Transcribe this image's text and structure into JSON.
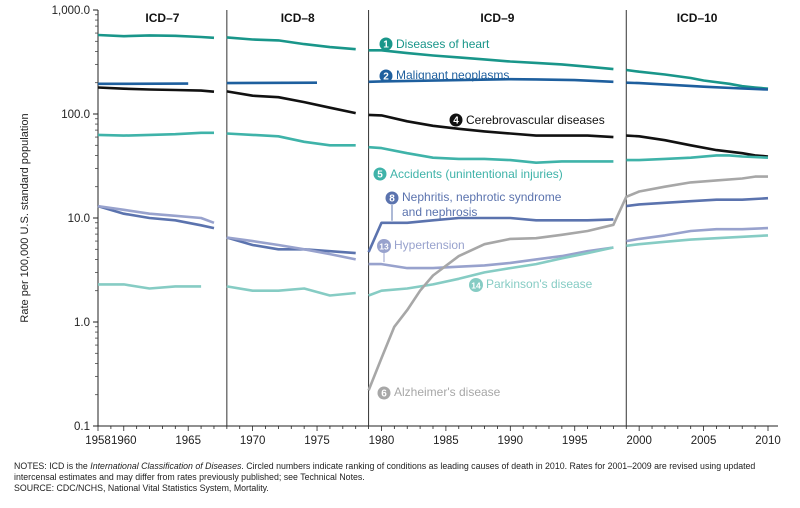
{
  "chart_data": {
    "type": "line",
    "title": "",
    "ylabel": "Rate per 100,000 U.S. standard population",
    "xlabel": "",
    "yscale": "log",
    "ylim": [
      0.1,
      1000
    ],
    "xlim": [
      1958,
      2010
    ],
    "x_ticks": [
      "1958",
      "1960",
      "1965",
      "1970",
      "1975",
      "1980",
      "1985",
      "1990",
      "1995",
      "2000",
      "2005",
      "2010"
    ],
    "y_ticks": [
      "1,000.0",
      "100.0",
      "10.0",
      "1.0",
      "0.1"
    ],
    "y_tick_values": [
      1000,
      100,
      10,
      1,
      0.1
    ],
    "eras": [
      {
        "label": "ICD–7",
        "start": 1958,
        "end": 1968
      },
      {
        "label": "ICD–8",
        "start": 1968,
        "end": 1979
      },
      {
        "label": "ICD–9",
        "start": 1979,
        "end": 1999
      },
      {
        "label": "ICD–10",
        "start": 1999,
        "end": 2010
      }
    ],
    "series": [
      {
        "id": "heart",
        "rank": "1",
        "name": "Diseases of heart",
        "color": "#19968a",
        "x": [
          1958,
          1960,
          1962,
          1964,
          1966,
          1967,
          1968,
          1970,
          1972,
          1974,
          1976,
          1978,
          1979,
          1980,
          1982,
          1984,
          1986,
          1988,
          1990,
          1992,
          1994,
          1996,
          1998,
          1999,
          2000,
          2002,
          2004,
          2005,
          2007,
          2008,
          2009,
          2010
        ],
        "y": [
          575,
          560,
          570,
          565,
          550,
          540,
          545,
          520,
          510,
          470,
          440,
          420,
          410,
          410,
          385,
          365,
          350,
          335,
          320,
          310,
          300,
          285,
          270,
          265,
          255,
          240,
          222,
          210,
          195,
          185,
          180,
          175
        ]
      },
      {
        "id": "cancer",
        "rank": "2",
        "name": "Malignant neoplasms",
        "color": "#1e5f9e",
        "x": [
          1958,
          1960,
          1965,
          1968,
          1970,
          1975,
          1979,
          1980,
          1985,
          1990,
          1992,
          1995,
          1998,
          1999,
          2000,
          2005,
          2008,
          2010
        ],
        "y": [
          195,
          195,
          196,
          198,
          199,
          200,
          204,
          206,
          211,
          216,
          215,
          212,
          204,
          200,
          198,
          183,
          176,
          172
        ]
      },
      {
        "id": "stroke",
        "rank": "4",
        "name": "Cerebrovascular diseases",
        "color": "#111111",
        "x": [
          1958,
          1960,
          1962,
          1964,
          1966,
          1967,
          1968,
          1970,
          1972,
          1974,
          1976,
          1978,
          1979,
          1980,
          1982,
          1984,
          1986,
          1988,
          1990,
          1992,
          1994,
          1996,
          1998,
          1999,
          2000,
          2002,
          2004,
          2006,
          2008,
          2009,
          2010
        ],
        "y": [
          180,
          175,
          172,
          170,
          168,
          164,
          165,
          150,
          145,
          130,
          115,
          102,
          98,
          97,
          85,
          77,
          72,
          68,
          65,
          62,
          62,
          62,
          60,
          62,
          61,
          56,
          50,
          45,
          42,
          40,
          39
        ]
      },
      {
        "id": "accidents",
        "rank": "5",
        "name": "Accidents (unintentional injuries)",
        "color": "#3fb3a9",
        "x": [
          1958,
          1960,
          1962,
          1964,
          1966,
          1967,
          1968,
          1970,
          1972,
          1974,
          1976,
          1978,
          1979,
          1980,
          1982,
          1984,
          1986,
          1988,
          1990,
          1992,
          1994,
          1996,
          1998,
          1999,
          2000,
          2002,
          2004,
          2006,
          2007,
          2008,
          2010
        ],
        "y": [
          63,
          62,
          63,
          64,
          66,
          66,
          65,
          63,
          61,
          54,
          50,
          50,
          48,
          47,
          42,
          38,
          37,
          37,
          36,
          34,
          35,
          35,
          35,
          36,
          36,
          37,
          38,
          40,
          40,
          39,
          38
        ]
      },
      {
        "id": "nephritis",
        "rank": "8",
        "name": "Nephritis, nephrotic syndrome and nephrosis",
        "color": "#5b73ae",
        "x": [
          1958,
          1960,
          1962,
          1964,
          1966,
          1967,
          1968,
          1970,
          1972,
          1974,
          1976,
          1978,
          1979,
          1980,
          1982,
          1984,
          1986,
          1988,
          1990,
          1992,
          1994,
          1996,
          1998,
          1999,
          2000,
          2002,
          2004,
          2006,
          2008,
          2010
        ],
        "y": [
          13,
          11,
          10,
          9.5,
          8.5,
          8,
          6.5,
          5.5,
          5,
          5,
          4.8,
          4.6,
          4.7,
          9,
          9,
          9.5,
          10,
          10,
          10,
          9.5,
          9.5,
          9.5,
          9.7,
          13,
          13.5,
          14,
          14.5,
          15,
          15,
          15.5
        ]
      },
      {
        "id": "hypertension",
        "rank": "13",
        "name": "Hypertension",
        "color": "#98a2cd",
        "x": [
          1958,
          1960,
          1962,
          1964,
          1966,
          1967,
          1968,
          1970,
          1972,
          1974,
          1976,
          1978,
          1979,
          1980,
          1982,
          1984,
          1986,
          1988,
          1990,
          1992,
          1994,
          1996,
          1998,
          1999,
          2000,
          2002,
          2004,
          2006,
          2008,
          2010
        ],
        "y": [
          13,
          12,
          11,
          10.5,
          10,
          9,
          6.5,
          6,
          5.5,
          5,
          4.5,
          4,
          3.6,
          3.6,
          3.3,
          3.3,
          3.4,
          3.5,
          3.7,
          4,
          4.3,
          4.8,
          5.2,
          6,
          6.3,
          6.8,
          7.5,
          7.8,
          7.8,
          8
        ]
      },
      {
        "id": "parkinsons",
        "rank": "14",
        "name": "Parkinson's disease",
        "color": "#86ccc4",
        "x": [
          1958,
          1960,
          1962,
          1964,
          1966,
          1968,
          1970,
          1972,
          1974,
          1976,
          1978,
          1979,
          1980,
          1982,
          1984,
          1986,
          1988,
          1990,
          1992,
          1994,
          1996,
          1998,
          1999,
          2000,
          2002,
          2004,
          2006,
          2008,
          2010
        ],
        "y": [
          2.3,
          2.3,
          2.1,
          2.2,
          2.2,
          2.2,
          2,
          2,
          2.1,
          1.8,
          1.9,
          1.8,
          2,
          2.1,
          2.3,
          2.6,
          3,
          3.3,
          3.6,
          4.1,
          4.6,
          5.2,
          5.4,
          5.6,
          5.9,
          6.2,
          6.4,
          6.6,
          6.8
        ]
      },
      {
        "id": "alzheimers",
        "rank": "6",
        "name": "Alzheimer's disease",
        "color": "#a7a7a7",
        "x": [
          1979,
          1980,
          1981,
          1982,
          1983,
          1984,
          1986,
          1988,
          1990,
          1992,
          1994,
          1996,
          1998,
          1999,
          2000,
          2002,
          2004,
          2006,
          2008,
          2009,
          2010
        ],
        "y": [
          0.22,
          0.45,
          0.9,
          1.3,
          2,
          2.8,
          4.3,
          5.6,
          6.3,
          6.4,
          6.9,
          7.5,
          8.6,
          16,
          18,
          20,
          22,
          23,
          24,
          25,
          25
        ]
      }
    ]
  },
  "notes": {
    "line1_prefix": "NOTES: ICD is the ",
    "line1_italic": "International Classification of Diseases",
    "line1_rest": ". Circled numbers indicate ranking of conditions as leading causes of death in 2010. Rates for 2001–2009 are revised using updated intercensal estimates and may differ from rates previously published; see Technical Notes.",
    "source": "SOURCE: CDC/NCHS, National Vital Statistics System, Mortality."
  }
}
